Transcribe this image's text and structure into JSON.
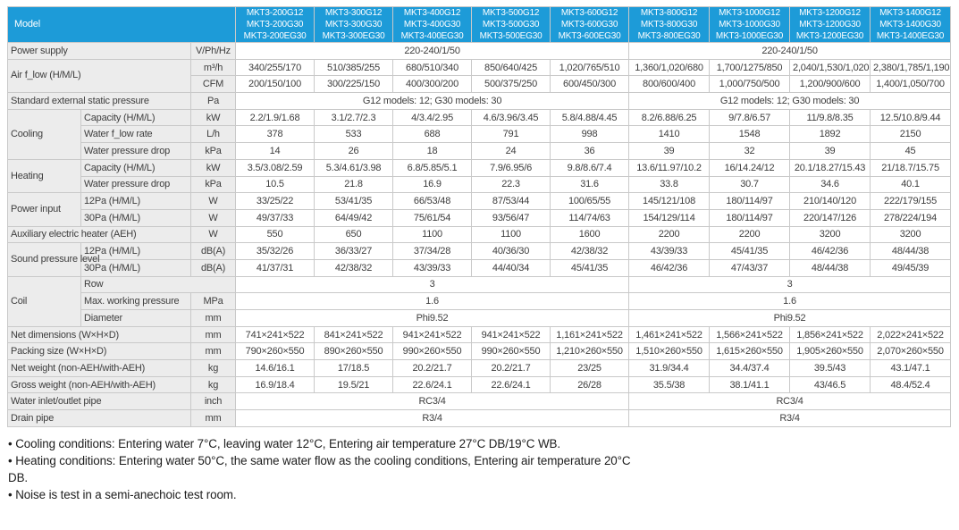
{
  "colors": {
    "header_bg": "#1d9bd8",
    "header_text": "#ffffff",
    "label_bg": "#ececec",
    "border": "#c9c9c9",
    "section_border": "#979797"
  },
  "header": {
    "model_label": "Model",
    "columns": [
      [
        "MKT3-200G12",
        "MKT3-200G30",
        "MKT3-200EG30"
      ],
      [
        "MKT3-300G12",
        "MKT3-300G30",
        "MKT3-300EG30"
      ],
      [
        "MKT3-400G12",
        "MKT3-400G30",
        "MKT3-400EG30"
      ],
      [
        "MKT3-500G12",
        "MKT3-500G30",
        "MKT3-500EG30"
      ],
      [
        "MKT3-600G12",
        "MKT3-600G30",
        "MKT3-600EG30"
      ],
      [
        "MKT3-800G12",
        "MKT3-800G30",
        "MKT3-800EG30"
      ],
      [
        "MKT3-1000G12",
        "MKT3-1000G30",
        "MKT3-1000EG30"
      ],
      [
        "MKT3-1200G12",
        "MKT3-1200G30",
        "MKT3-1200EG30"
      ],
      [
        "MKT3-1400G12",
        "MKT3-1400G30",
        "MKT3-1400EG30"
      ]
    ]
  },
  "rows": [
    {
      "section": true,
      "label": "Power supply",
      "wide": true,
      "unit": "V/Ph/Hz",
      "merged": [
        "220-240/1/50",
        "220-240/1/50"
      ]
    },
    {
      "section": true,
      "group": "Air f_low (H/M/L)",
      "group_rows": 2,
      "group_wide": true,
      "unit": "m³/h",
      "cells": [
        "340/255/170",
        "510/385/255",
        "680/510/340",
        "850/640/425",
        "1,020/765/510",
        "1,360/1,020/680",
        "1,700/1275/850",
        "2,040/1,530/1,020",
        "2,380/1,785/1,190"
      ]
    },
    {
      "unit": "CFM",
      "cells": [
        "200/150/100",
        "300/225/150",
        "400/300/200",
        "500/375/250",
        "600/450/300",
        "800/600/400",
        "1,000/750/500",
        "1,200/900/600",
        "1,400/1,050/700"
      ]
    },
    {
      "section": true,
      "label": "Standard external static pressure",
      "wide": true,
      "unit": "Pa",
      "merged": [
        "G12 models: 12;  G30 models: 30",
        "G12 models: 12;  G30 models: 30"
      ]
    },
    {
      "section": true,
      "group": "Cooling",
      "group_rows": 3,
      "label": "Capacity (H/M/L)",
      "unit": "kW",
      "cells": [
        "2.2/1.9/1.68",
        "3.1/2.7/2.3",
        "4/3.4/2.95",
        "4.6/3.96/3.45",
        "5.8/4.88/4.45",
        "8.2/6.88/6.25",
        "9/7.8/6.57",
        "11/9.8/8.35",
        "12.5/10.8/9.44"
      ]
    },
    {
      "label": "Water f_low rate",
      "unit": "L/h",
      "cells": [
        "378",
        "533",
        "688",
        "791",
        "998",
        "1410",
        "1548",
        "1892",
        "2150"
      ]
    },
    {
      "label": "Water pressure drop",
      "unit": "kPa",
      "cells": [
        "14",
        "26",
        "18",
        "24",
        "36",
        "39",
        "32",
        "39",
        "45"
      ]
    },
    {
      "section": true,
      "group": "Heating",
      "group_rows": 2,
      "label": "Capacity (H/M/L)",
      "unit": "kW",
      "cells": [
        "3.5/3.08/2.59",
        "5.3/4.61/3.98",
        "6.8/5.85/5.1",
        "7.9/6.95/6",
        "9.8/8.6/7.4",
        "13.6/11.97/10.2",
        "16/14.24/12",
        "20.1/18.27/15.43",
        "21/18.7/15.75"
      ]
    },
    {
      "label": "Water pressure drop",
      "unit": "kPa",
      "cells": [
        "10.5",
        "21.8",
        "16.9",
        "22.3",
        "31.6",
        "33.8",
        "30.7",
        "34.6",
        "40.1"
      ]
    },
    {
      "section": true,
      "group": "Power input",
      "group_rows": 2,
      "label": "12Pa (H/M/L)",
      "unit": "W",
      "cells": [
        "33/25/22",
        "53/41/35",
        "66/53/48",
        "87/53/44",
        "100/65/55",
        "145/121/108",
        "180/114/97",
        "210/140/120",
        "222/179/155"
      ]
    },
    {
      "label": "30Pa (H/M/L)",
      "unit": "W",
      "cells": [
        "49/37/33",
        "64/49/42",
        "75/61/54",
        "93/56/47",
        "114/74/63",
        "154/129/114",
        "180/114/97",
        "220/147/126",
        "278/224/194"
      ]
    },
    {
      "section": true,
      "label": "Auxiliary electric heater (AEH)",
      "wide": true,
      "unit": "W",
      "cells": [
        "550",
        "650",
        "1100",
        "1100",
        "1600",
        "2200",
        "2200",
        "3200",
        "3200"
      ]
    },
    {
      "section": true,
      "group": "Sound pressure level",
      "group_rows": 2,
      "label": "12Pa (H/M/L)",
      "unit": "dB(A)",
      "cells": [
        "35/32/26",
        "36/33/27",
        "37/34/28",
        "40/36/30",
        "42/38/32",
        "43/39/33",
        "45/41/35",
        "46/42/36",
        "48/44/38"
      ]
    },
    {
      "label": "30Pa (H/M/L)",
      "unit": "dB(A)",
      "cells": [
        "41/37/31",
        "42/38/32",
        "43/39/33",
        "44/40/34",
        "45/41/35",
        "46/42/36",
        "47/43/37",
        "48/44/38",
        "49/45/39"
      ]
    },
    {
      "section": true,
      "group": "Coil",
      "group_rows": 3,
      "label": "Row",
      "label_spans_unit": true,
      "merged": [
        "3",
        "3"
      ]
    },
    {
      "label": "Max. working pressure",
      "unit": "MPa",
      "merged": [
        "1.6",
        "1.6"
      ]
    },
    {
      "label": "Diameter",
      "unit": "mm",
      "merged": [
        "Phi9.52",
        "Phi9.52"
      ]
    },
    {
      "section": true,
      "label": "Net dimensions (W×H×D)",
      "wide": true,
      "unit": "mm",
      "cells": [
        "741×241×522",
        "841×241×522",
        "941×241×522",
        "941×241×522",
        "1,161×241×522",
        "1,461×241×522",
        "1,566×241×522",
        "1,856×241×522",
        "2,022×241×522"
      ]
    },
    {
      "section": true,
      "label": "Packing size (W×H×D)",
      "wide": true,
      "unit": "mm",
      "cells": [
        "790×260×550",
        "890×260×550",
        "990×260×550",
        "990×260×550",
        "1,210×260×550",
        "1,510×260×550",
        "1,615×260×550",
        "1,905×260×550",
        "2,070×260×550"
      ]
    },
    {
      "section": true,
      "label": "Net weight (non-AEH/with-AEH)",
      "wide": true,
      "unit": "kg",
      "cells": [
        "14.6/16.1",
        "17/18.5",
        "20.2/21.7",
        "20.2/21.7",
        "23/25",
        "31.9/34.4",
        "34.4/37.4",
        "39.5/43",
        "43.1/47.1"
      ]
    },
    {
      "label": "Gross weight (non-AEH/with-AEH)",
      "wide": true,
      "unit": "kg",
      "cells": [
        "16.9/18.4",
        "19.5/21",
        "22.6/24.1",
        "22.6/24.1",
        "26/28",
        "35.5/38",
        "38.1/41.1",
        "43/46.5",
        "48.4/52.4"
      ]
    },
    {
      "section": true,
      "label": "Water inlet/outlet pipe",
      "wide": true,
      "unit": "inch",
      "merged": [
        "RC3/4",
        "RC3/4"
      ]
    },
    {
      "section": true,
      "label": "Drain pipe",
      "wide": true,
      "unit": "mm",
      "merged": [
        "R3/4",
        "R3/4"
      ]
    }
  ],
  "notes": [
    "Cooling conditions: Entering water 7°C, leaving water 12°C, Entering air temperature 27°C DB/19°C WB.",
    "Heating conditions: Entering water 50°C, the same water flow as the cooling conditions, Entering air temperature 20°C DB.",
    "Noise is test in a semi-anechoic test room."
  ]
}
